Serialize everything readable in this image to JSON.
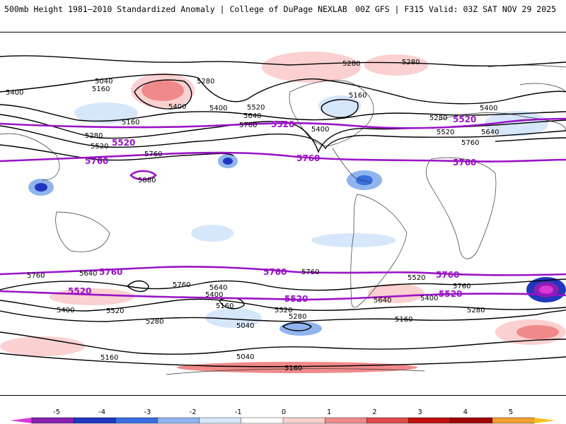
{
  "header": {
    "title_left": "500mb Height 1981–2010 Standardized Anomaly | College of DuPage NEXLAB",
    "title_right": "00Z GFS | F315 Valid: 03Z SAT NOV 29 2025"
  },
  "contour_labels": {
    "h5400": "5400",
    "h5280": "5280",
    "h5160": "5160",
    "h5040": "5040",
    "h5520": "5520",
    "h5640": "5640",
    "h5760": "5760",
    "h5880": "5880"
  },
  "colorbar": {
    "ticks": [
      "-5",
      "-4",
      "-3",
      "-2",
      "-1",
      "0",
      "1",
      "2",
      "3",
      "4",
      "5"
    ],
    "colors": [
      "#d838d8",
      "#8a1fb0",
      "#2037c0",
      "#3a6ee0",
      "#8fb4f0",
      "#d6e6fb",
      "#ffffff",
      "#fbd0d0",
      "#f08a8a",
      "#e04848",
      "#c01010",
      "#a00000",
      "#f0a030",
      "#f8c020"
    ]
  }
}
